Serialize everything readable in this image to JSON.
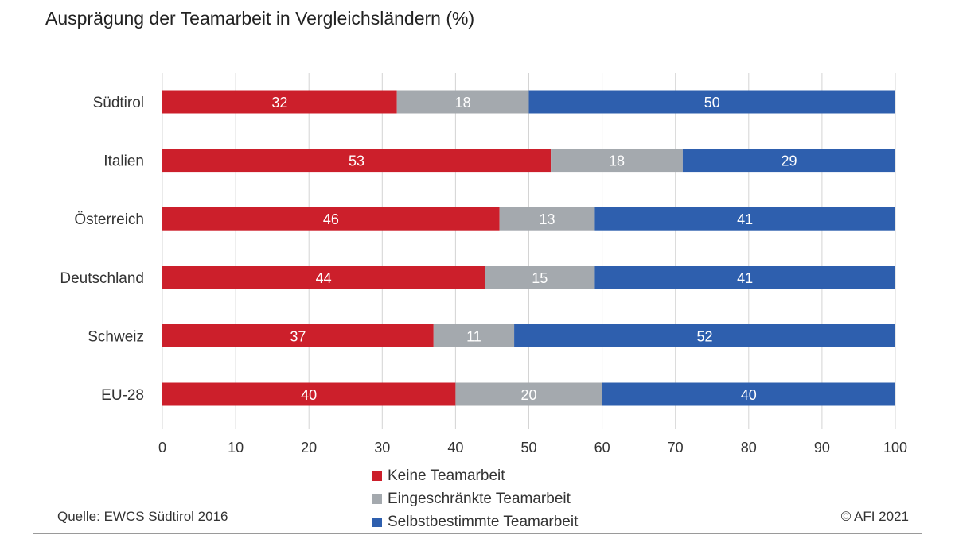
{
  "chart_data": {
    "type": "bar",
    "orientation": "horizontal",
    "stacked": true,
    "title": "Ausprägung der Teamarbeit in Vergleichsländern (%)",
    "categories": [
      "Südtirol",
      "Italien",
      "Österreich",
      "Deutschland",
      "Schweiz",
      "EU-28"
    ],
    "series": [
      {
        "name": "Keine Teamarbeit",
        "color": "#cc1f2b",
        "values": [
          32,
          53,
          46,
          44,
          37,
          40
        ]
      },
      {
        "name": "Eingeschränkte Teamarbeit",
        "color": "#a4a9ae",
        "values": [
          18,
          18,
          13,
          15,
          11,
          20
        ]
      },
      {
        "name": "Selbstbestimmte Teamarbeit",
        "color": "#2e5fae",
        "values": [
          50,
          29,
          41,
          41,
          52,
          40
        ]
      }
    ],
    "xlim": [
      0,
      100
    ],
    "xticks": [
      "0",
      "10",
      "20",
      "30",
      "40",
      "50",
      "60",
      "70",
      "80",
      "90",
      "100"
    ],
    "grid": true,
    "legend": "bottom-center"
  },
  "footer": {
    "source": "Quelle: EWCS Südtirol 2016",
    "copyright": "© AFI 2021"
  }
}
